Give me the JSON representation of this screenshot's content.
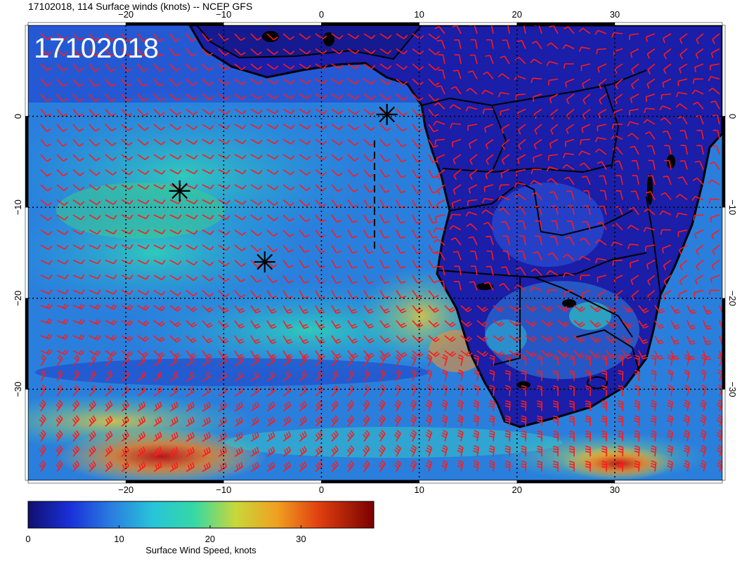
{
  "header": {
    "title": "17102018, 114 Surface winds (knots) -- NCEP GFS"
  },
  "map": {
    "date_stamp": "17102018",
    "lon_ticks": [
      "−20",
      "−10",
      "0",
      "10",
      "20",
      "30"
    ],
    "lat_ticks": [
      "0",
      "−10",
      "−20",
      "−30"
    ],
    "lon_range": [
      -30,
      41
    ],
    "lat_range": [
      -40,
      10
    ],
    "markers": [
      {
        "lon": 6.7,
        "lat": 0.2
      },
      {
        "lon": -14.5,
        "lat": -8.2
      },
      {
        "lon": -5.8,
        "lat": -16.0
      }
    ],
    "colors": {
      "barb": "#ff1a1a",
      "land": "#1a1aa0",
      "coast": "#000000",
      "grid": "#000000"
    }
  },
  "colorbar": {
    "label": "Surface Wind Speed, knots",
    "tick_labels": [
      "0",
      "10",
      "20",
      "30"
    ],
    "range": [
      0,
      38
    ],
    "stops": [
      "#10106e",
      "#1a2fd8",
      "#2a7de0",
      "#27c4d9",
      "#35d8a6",
      "#c8d83a",
      "#f0a020",
      "#e04010",
      "#7a0000"
    ]
  }
}
